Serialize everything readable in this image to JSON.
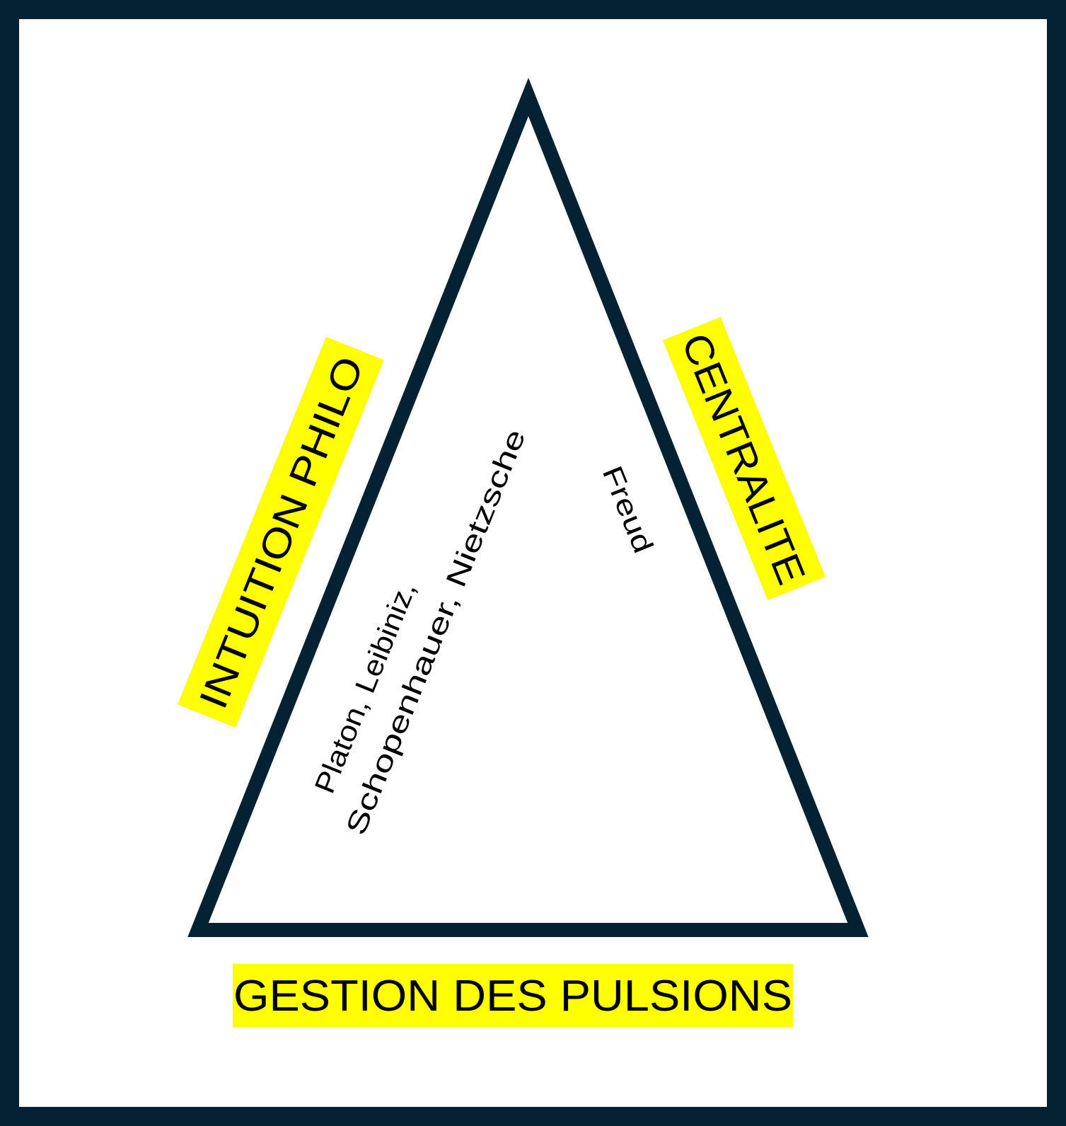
{
  "colors": {
    "frame": "#052233",
    "triangle_stroke": "#052233",
    "highlight": "#ffff00",
    "background": "#ffffff",
    "text": "#000000"
  },
  "labels": {
    "left_side": "INTUITION PHILO",
    "right_side": "CENTRALITE",
    "base": "GESTION DES PULSIONS"
  },
  "inner_text": {
    "philosophers_line1": "Platon, Leibiniz,",
    "philosophers_line2": "Schopenhauer, Nietzsche",
    "freud": "Freud"
  }
}
